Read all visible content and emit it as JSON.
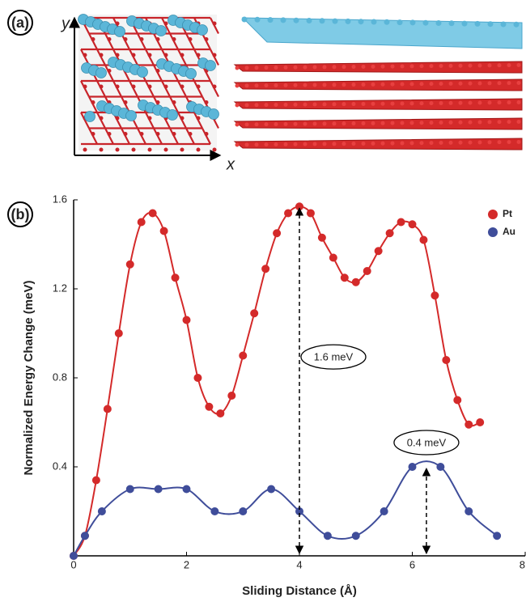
{
  "panel_a": {
    "label": "(a)",
    "x_axis": "x",
    "y_axis": "y"
  },
  "chart_data": {
    "type": "line",
    "panel_label": "(b)",
    "x_label": "Sliding Distance (Å)",
    "y_label": "Normalized Energy Change (meV)",
    "xlim": [
      0,
      8
    ],
    "xticks": [
      0,
      2,
      4,
      6,
      8
    ],
    "ylim": [
      0,
      1.6
    ],
    "yticks": [
      0.4,
      0.8,
      1.2,
      1.6
    ],
    "legend": "upper right",
    "series": [
      {
        "name": "Pt",
        "color": "#d42a2a",
        "x": [
          0,
          0.2,
          0.4,
          0.6,
          0.8,
          1.0,
          1.2,
          1.4,
          1.6,
          1.8,
          2.0,
          2.2,
          2.4,
          2.6,
          2.8,
          3.0,
          3.2,
          3.4,
          3.6,
          3.8,
          4.0,
          4.2,
          4.4,
          4.6,
          4.8,
          5.0,
          5.2,
          5.4,
          5.6,
          5.8,
          6.0,
          6.2,
          6.4,
          6.6,
          6.8,
          7.0,
          7.2
        ],
        "values": [
          0,
          0.09,
          0.34,
          0.66,
          1.0,
          1.31,
          1.5,
          1.54,
          1.46,
          1.25,
          1.06,
          0.8,
          0.67,
          0.64,
          0.72,
          0.9,
          1.09,
          1.29,
          1.45,
          1.54,
          1.57,
          1.54,
          1.43,
          1.34,
          1.25,
          1.23,
          1.28,
          1.37,
          1.45,
          1.5,
          1.49,
          1.42,
          1.17,
          0.88,
          0.7,
          0.59,
          0.6
        ]
      },
      {
        "name": "Au",
        "color": "#3f4d9a",
        "x": [
          0,
          0.2,
          0.5,
          1.0,
          1.5,
          2.0,
          2.5,
          3.0,
          3.5,
          4.0,
          4.5,
          5.0,
          5.5,
          6.0,
          6.5,
          7.0,
          7.5
        ],
        "values": [
          0,
          0.09,
          0.2,
          0.3,
          0.3,
          0.3,
          0.2,
          0.2,
          0.3,
          0.2,
          0.09,
          0.09,
          0.2,
          0.4,
          0.4,
          0.2,
          0.09
        ]
      }
    ],
    "annotations": [
      {
        "text": "1.6 meV",
        "series": "Pt"
      },
      {
        "text": "0.4 meV",
        "series": "Au"
      }
    ]
  }
}
